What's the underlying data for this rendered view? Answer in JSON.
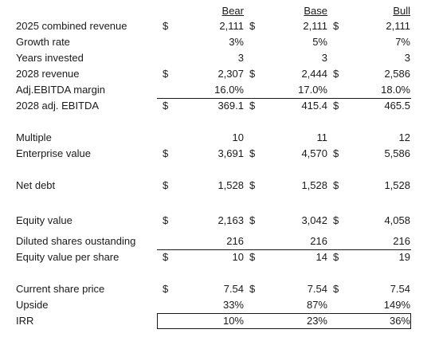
{
  "columns": {
    "bear": "Bear",
    "base": "Base",
    "bull": "Bull"
  },
  "currency_symbol": "$",
  "rows": {
    "revenue_2025": {
      "label": "2025 combined revenue",
      "bear": "2,111",
      "base": "2,111",
      "bull": "2,111"
    },
    "growth_rate": {
      "label": "Growth rate",
      "bear": "3%",
      "base": "5%",
      "bull": "7%"
    },
    "years_invested": {
      "label": "Years invested",
      "bear": "3",
      "base": "3",
      "bull": "3"
    },
    "revenue_2028": {
      "label": "2028 revenue",
      "bear": "2,307",
      "base": "2,444",
      "bull": "2,586"
    },
    "ebitda_margin": {
      "label": "Adj.EBITDA margin",
      "bear": "16.0%",
      "base": "17.0%",
      "bull": "18.0%"
    },
    "ebitda_2028": {
      "label": "2028 adj. EBITDA",
      "bear": "369.1",
      "base": "415.4",
      "bull": "465.5"
    },
    "multiple": {
      "label": "Multiple",
      "bear": "10",
      "base": "11",
      "bull": "12"
    },
    "enterprise_value": {
      "label": "Enterprise value",
      "bear": "3,691",
      "base": "4,570",
      "bull": "5,586"
    },
    "net_debt": {
      "label": "Net debt",
      "bear": "1,528",
      "base": "1,528",
      "bull": "1,528"
    },
    "equity_value": {
      "label": "Equity value",
      "bear": "2,163",
      "base": "3,042",
      "bull": "4,058"
    },
    "diluted_shares": {
      "label": "Diluted shares oustanding",
      "bear": "216",
      "base": "216",
      "bull": "216"
    },
    "equity_per_share": {
      "label": "Equity value per share",
      "bear": "10",
      "base": "14",
      "bull": "19"
    },
    "share_price": {
      "label": "Current share price",
      "bear": "7.54",
      "base": "7.54",
      "bull": "7.54"
    },
    "upside": {
      "label": "Upside",
      "bear": "33%",
      "base": "87%",
      "bull": "149%"
    },
    "irr": {
      "label": "IRR",
      "bear": "10%",
      "base": "23%",
      "bull": "36%"
    }
  }
}
